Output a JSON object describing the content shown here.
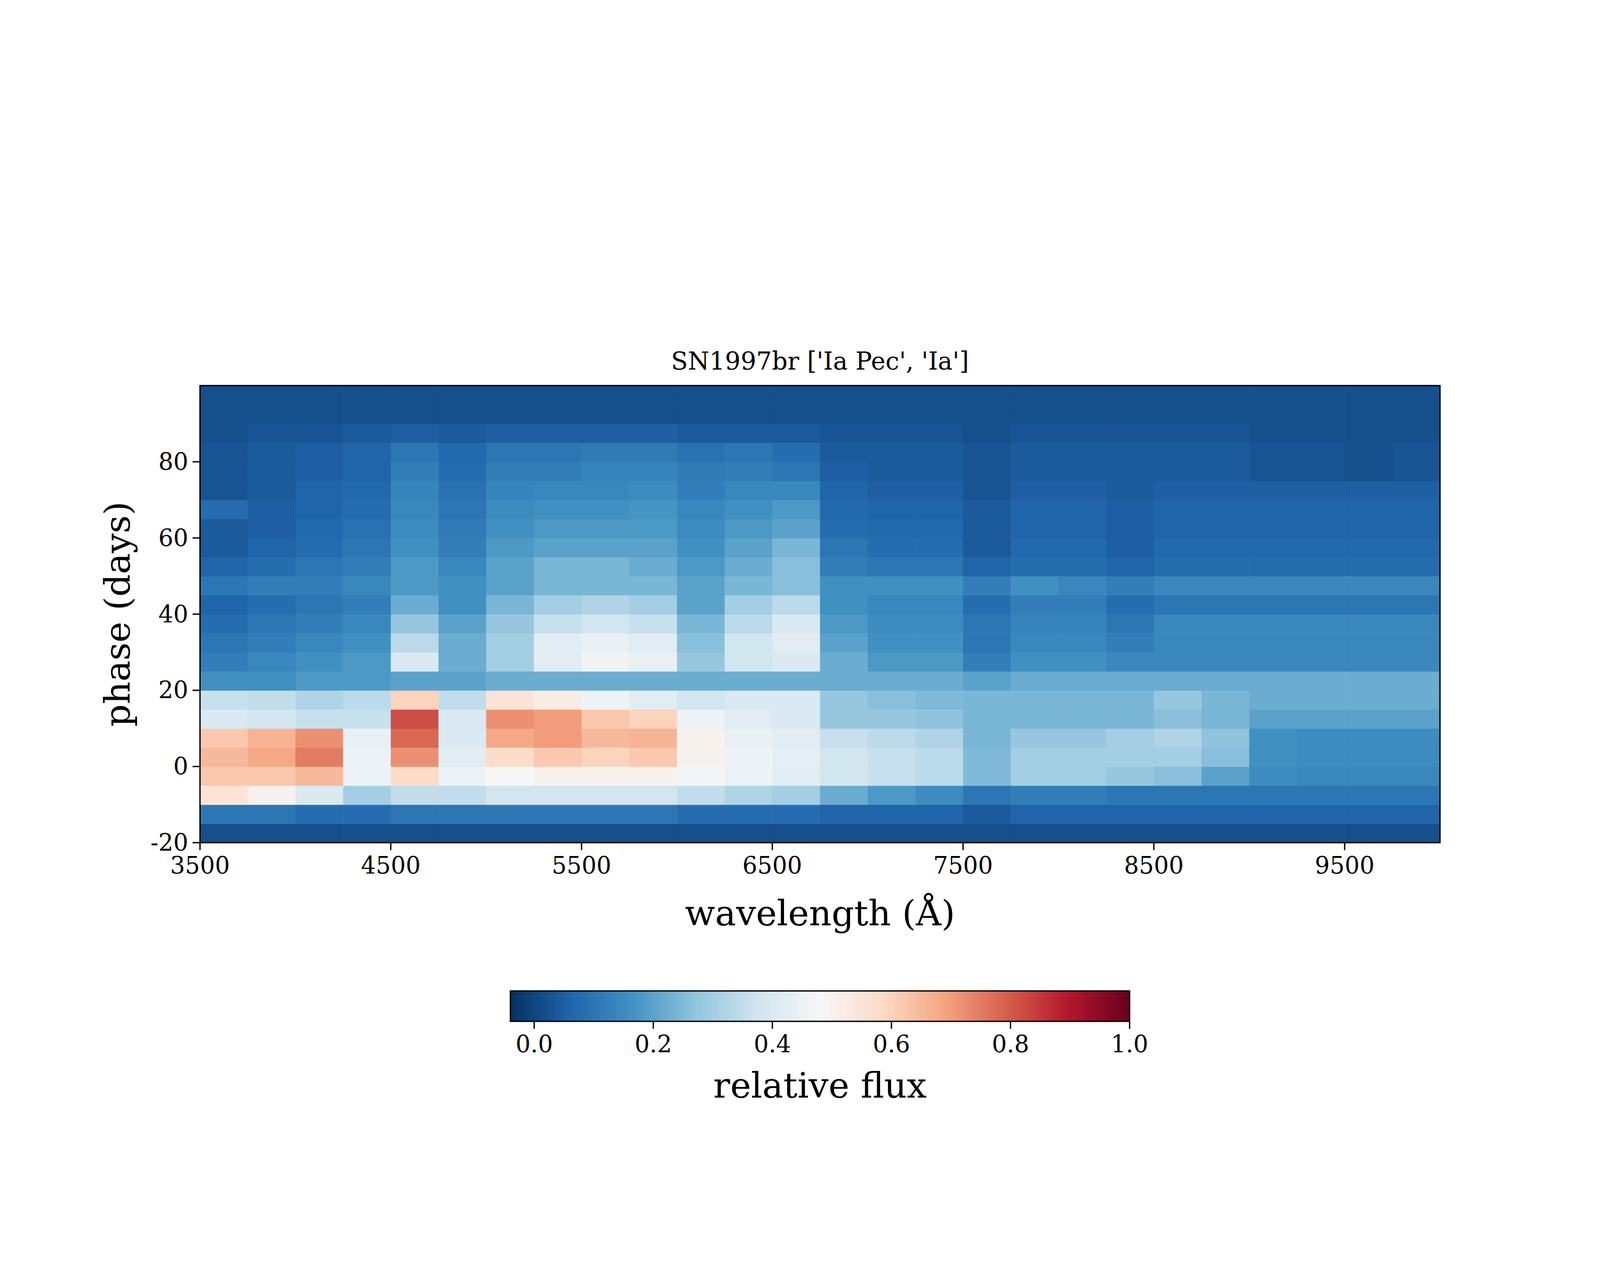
{
  "chart_data": {
    "type": "heatmap",
    "title": "SN1997br ['Ia Pec', 'Ia']",
    "x_label": "wavelength (Å)",
    "y_label": "phase (days)",
    "xlim": [
      3500,
      10000
    ],
    "ylim": [
      -20,
      100
    ],
    "xticks": [
      3500,
      4500,
      5500,
      6500,
      7500,
      8500,
      9500
    ],
    "yticks": [
      -20,
      0,
      20,
      40,
      60,
      80
    ],
    "x_edges": [
      3500,
      3750,
      4000,
      4250,
      4500,
      4750,
      5000,
      5250,
      5500,
      5750,
      6000,
      6250,
      6500,
      6750,
      7000,
      7250,
      7500,
      7750,
      8000,
      8250,
      8500,
      8750,
      9000,
      9250,
      9500,
      9750,
      10000
    ],
    "y_edges": [
      -20,
      -15,
      -10,
      -5,
      0,
      5,
      10,
      15,
      20,
      25,
      30,
      35,
      40,
      45,
      50,
      55,
      60,
      65,
      70,
      75,
      80,
      85,
      90,
      95,
      100
    ],
    "z": [
      [
        0.02,
        0.02,
        0.02,
        0.02,
        0.02,
        0.02,
        0.02,
        0.02,
        0.02,
        0.02,
        0.02,
        0.02,
        0.02,
        0.02,
        0.02,
        0.02,
        0.02,
        0.02,
        0.02,
        0.02,
        0.02,
        0.02,
        0.02,
        0.02,
        0.02,
        0.02
      ],
      [
        0.1,
        0.1,
        0.08,
        0.08,
        0.1,
        0.1,
        0.1,
        0.1,
        0.1,
        0.1,
        0.08,
        0.08,
        0.08,
        0.06,
        0.06,
        0.06,
        0.04,
        0.06,
        0.06,
        0.06,
        0.06,
        0.06,
        0.06,
        0.06,
        0.06,
        0.06
      ],
      [
        0.55,
        0.5,
        0.4,
        0.3,
        0.35,
        0.35,
        0.38,
        0.38,
        0.38,
        0.38,
        0.35,
        0.32,
        0.3,
        0.22,
        0.18,
        0.15,
        0.1,
        0.12,
        0.12,
        0.1,
        0.1,
        0.1,
        0.1,
        0.1,
        0.1,
        0.1
      ],
      [
        0.62,
        0.62,
        0.65,
        0.45,
        0.58,
        0.45,
        0.48,
        0.5,
        0.5,
        0.5,
        0.47,
        0.45,
        0.42,
        0.38,
        0.36,
        0.34,
        0.25,
        0.3,
        0.3,
        0.28,
        0.26,
        0.2,
        0.15,
        0.14,
        0.14,
        0.14
      ],
      [
        0.65,
        0.68,
        0.75,
        0.45,
        0.72,
        0.42,
        0.58,
        0.62,
        0.6,
        0.62,
        0.5,
        0.45,
        0.43,
        0.38,
        0.36,
        0.34,
        0.25,
        0.3,
        0.3,
        0.3,
        0.3,
        0.26,
        0.16,
        0.15,
        0.15,
        0.15
      ],
      [
        0.62,
        0.66,
        0.72,
        0.44,
        0.78,
        0.4,
        0.68,
        0.7,
        0.65,
        0.66,
        0.5,
        0.44,
        0.42,
        0.36,
        0.34,
        0.32,
        0.24,
        0.28,
        0.28,
        0.3,
        0.32,
        0.27,
        0.16,
        0.15,
        0.15,
        0.15
      ],
      [
        0.4,
        0.38,
        0.36,
        0.36,
        0.82,
        0.4,
        0.72,
        0.7,
        0.62,
        0.6,
        0.45,
        0.42,
        0.4,
        0.28,
        0.28,
        0.27,
        0.24,
        0.24,
        0.24,
        0.24,
        0.26,
        0.24,
        0.2,
        0.2,
        0.2,
        0.2
      ],
      [
        0.36,
        0.35,
        0.32,
        0.34,
        0.6,
        0.35,
        0.55,
        0.52,
        0.45,
        0.42,
        0.38,
        0.4,
        0.4,
        0.28,
        0.26,
        0.25,
        0.24,
        0.24,
        0.24,
        0.24,
        0.28,
        0.24,
        0.22,
        0.22,
        0.22,
        0.22
      ],
      [
        0.16,
        0.16,
        0.18,
        0.18,
        0.2,
        0.2,
        0.22,
        0.22,
        0.22,
        0.22,
        0.22,
        0.22,
        0.22,
        0.22,
        0.22,
        0.22,
        0.2,
        0.22,
        0.22,
        0.22,
        0.22,
        0.22,
        0.22,
        0.22,
        0.22,
        0.22
      ],
      [
        0.12,
        0.14,
        0.16,
        0.18,
        0.4,
        0.22,
        0.3,
        0.42,
        0.46,
        0.44,
        0.28,
        0.38,
        0.4,
        0.22,
        0.18,
        0.18,
        0.12,
        0.16,
        0.16,
        0.14,
        0.14,
        0.14,
        0.14,
        0.14,
        0.14,
        0.14
      ],
      [
        0.1,
        0.12,
        0.14,
        0.16,
        0.34,
        0.22,
        0.3,
        0.42,
        0.44,
        0.42,
        0.26,
        0.38,
        0.42,
        0.2,
        0.16,
        0.16,
        0.1,
        0.14,
        0.14,
        0.12,
        0.14,
        0.14,
        0.14,
        0.14,
        0.14,
        0.14
      ],
      [
        0.08,
        0.1,
        0.12,
        0.14,
        0.28,
        0.2,
        0.28,
        0.36,
        0.38,
        0.36,
        0.24,
        0.34,
        0.4,
        0.18,
        0.15,
        0.15,
        0.1,
        0.13,
        0.13,
        0.1,
        0.14,
        0.14,
        0.14,
        0.14,
        0.14,
        0.14
      ],
      [
        0.06,
        0.08,
        0.1,
        0.12,
        0.22,
        0.16,
        0.24,
        0.3,
        0.32,
        0.3,
        0.2,
        0.3,
        0.34,
        0.16,
        0.14,
        0.14,
        0.08,
        0.12,
        0.12,
        0.08,
        0.1,
        0.1,
        0.1,
        0.1,
        0.1,
        0.1
      ],
      [
        0.1,
        0.12,
        0.12,
        0.14,
        0.18,
        0.16,
        0.2,
        0.24,
        0.24,
        0.24,
        0.2,
        0.24,
        0.26,
        0.16,
        0.16,
        0.16,
        0.12,
        0.16,
        0.14,
        0.12,
        0.14,
        0.14,
        0.14,
        0.14,
        0.14,
        0.14
      ],
      [
        0.06,
        0.08,
        0.1,
        0.12,
        0.18,
        0.14,
        0.2,
        0.24,
        0.24,
        0.22,
        0.18,
        0.22,
        0.26,
        0.12,
        0.1,
        0.1,
        0.06,
        0.08,
        0.08,
        0.06,
        0.08,
        0.08,
        0.08,
        0.08,
        0.08,
        0.08
      ],
      [
        0.04,
        0.06,
        0.08,
        0.1,
        0.16,
        0.12,
        0.18,
        0.2,
        0.2,
        0.2,
        0.16,
        0.2,
        0.24,
        0.1,
        0.08,
        0.08,
        0.04,
        0.07,
        0.07,
        0.05,
        0.07,
        0.07,
        0.07,
        0.07,
        0.07,
        0.07
      ],
      [
        0.04,
        0.05,
        0.07,
        0.09,
        0.15,
        0.11,
        0.16,
        0.18,
        0.18,
        0.18,
        0.15,
        0.18,
        0.2,
        0.08,
        0.07,
        0.07,
        0.04,
        0.06,
        0.06,
        0.05,
        0.06,
        0.06,
        0.06,
        0.06,
        0.06,
        0.06
      ],
      [
        0.08,
        0.05,
        0.06,
        0.08,
        0.14,
        0.1,
        0.15,
        0.16,
        0.16,
        0.17,
        0.14,
        0.16,
        0.18,
        0.07,
        0.06,
        0.06,
        0.04,
        0.06,
        0.06,
        0.05,
        0.06,
        0.06,
        0.06,
        0.06,
        0.06,
        0.06
      ],
      [
        0.03,
        0.04,
        0.06,
        0.07,
        0.13,
        0.09,
        0.13,
        0.14,
        0.14,
        0.15,
        0.12,
        0.14,
        0.14,
        0.06,
        0.05,
        0.05,
        0.03,
        0.05,
        0.05,
        0.04,
        0.05,
        0.05,
        0.05,
        0.05,
        0.05,
        0.05
      ],
      [
        0.03,
        0.04,
        0.05,
        0.06,
        0.12,
        0.08,
        0.12,
        0.12,
        0.13,
        0.13,
        0.11,
        0.12,
        0.1,
        0.05,
        0.04,
        0.04,
        0.03,
        0.04,
        0.04,
        0.04,
        0.04,
        0.04,
        0.03,
        0.03,
        0.02,
        0.03
      ],
      [
        0.03,
        0.04,
        0.05,
        0.06,
        0.1,
        0.07,
        0.1,
        0.1,
        0.11,
        0.11,
        0.09,
        0.1,
        0.08,
        0.04,
        0.04,
        0.04,
        0.03,
        0.04,
        0.04,
        0.04,
        0.04,
        0.04,
        0.03,
        0.03,
        0.02,
        0.03
      ],
      [
        0.02,
        0.03,
        0.03,
        0.04,
        0.05,
        0.04,
        0.05,
        0.05,
        0.05,
        0.05,
        0.04,
        0.04,
        0.04,
        0.03,
        0.03,
        0.03,
        0.02,
        0.03,
        0.03,
        0.03,
        0.03,
        0.03,
        0.02,
        0.02,
        0.02,
        0.02
      ],
      [
        0.02,
        0.02,
        0.02,
        0.02,
        0.02,
        0.02,
        0.02,
        0.02,
        0.02,
        0.02,
        0.02,
        0.02,
        0.02,
        0.02,
        0.02,
        0.02,
        0.02,
        0.02,
        0.02,
        0.02,
        0.02,
        0.02,
        0.02,
        0.02,
        0.02,
        0.02
      ],
      [
        0.02,
        0.02,
        0.02,
        0.02,
        0.02,
        0.02,
        0.02,
        0.02,
        0.02,
        0.02,
        0.02,
        0.02,
        0.02,
        0.02,
        0.02,
        0.02,
        0.02,
        0.02,
        0.02,
        0.02,
        0.02,
        0.02,
        0.02,
        0.02,
        0.02,
        0.02
      ]
    ],
    "colorbar": {
      "label": "relative flux",
      "range": [
        -0.04,
        1.0
      ],
      "ticks": [
        {
          "value": 0,
          "label": "0.0"
        },
        {
          "value": 0.2,
          "label": "0.2"
        },
        {
          "value": 0.4,
          "label": "0.4"
        },
        {
          "value": 0.6,
          "label": "0.6"
        },
        {
          "value": 0.8,
          "label": "0.8"
        },
        {
          "value": 1,
          "label": "1.0"
        }
      ]
    }
  }
}
